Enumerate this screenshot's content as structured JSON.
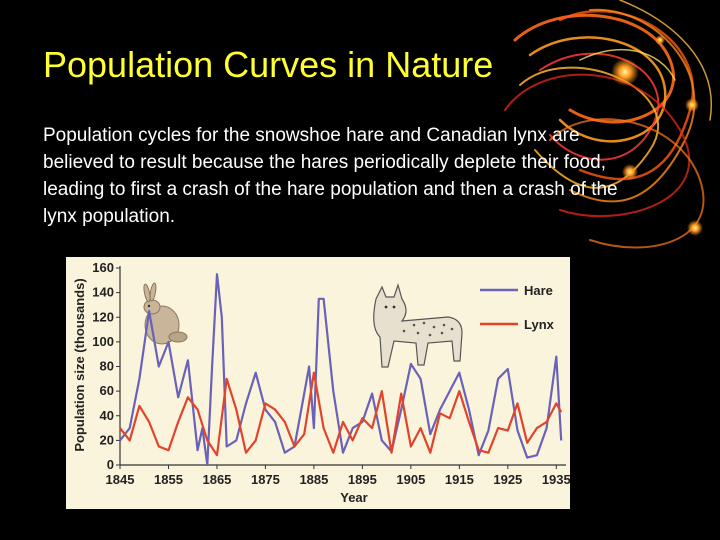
{
  "slide": {
    "title": "Population Curves in Nature",
    "body": "Population cycles for the snowshoe hare and Canadian lynx are believed to result because the hares periodically deplete their food, leading to first a crash of the hare population and then a crash of the lynx population."
  },
  "colors": {
    "background": "#000000",
    "title": "#ffff33",
    "text": "#ffffff",
    "hare": "#6a62b8",
    "lynx": "#e0442c",
    "decoration": "#ff8c1a"
  },
  "illustrations": [
    "rabbit-illustration",
    "lynx-illustration"
  ],
  "chart_data": {
    "type": "line",
    "xlabel": "Year",
    "ylabel": "Population size (thousands)",
    "xlim": [
      1845,
      1937
    ],
    "ylim": [
      0,
      160
    ],
    "x_ticks": [
      1845,
      1855,
      1865,
      1875,
      1885,
      1895,
      1905,
      1915,
      1925,
      1935
    ],
    "y_ticks": [
      0,
      20,
      40,
      60,
      80,
      100,
      120,
      140,
      160
    ],
    "legend_position": "top-right",
    "grid": false,
    "series": [
      {
        "name": "Hare",
        "color": "#6a62b8",
        "x": [
          1845,
          1847,
          1849,
          1851,
          1853,
          1855,
          1857,
          1859,
          1861,
          1862,
          1863,
          1864,
          1865,
          1866,
          1867,
          1869,
          1871,
          1873,
          1875,
          1877,
          1879,
          1881,
          1883,
          1884,
          1885,
          1886,
          1887,
          1889,
          1891,
          1893,
          1895,
          1897,
          1899,
          1901,
          1903,
          1905,
          1907,
          1909,
          1911,
          1913,
          1915,
          1917,
          1919,
          1921,
          1923,
          1925,
          1927,
          1929,
          1931,
          1933,
          1935,
          1936
        ],
        "y": [
          20,
          30,
          70,
          125,
          80,
          100,
          55,
          85,
          12,
          30,
          0,
          80,
          155,
          120,
          15,
          20,
          50,
          75,
          45,
          35,
          10,
          15,
          58,
          80,
          30,
          135,
          135,
          60,
          10,
          30,
          35,
          58,
          20,
          11,
          45,
          82,
          70,
          25,
          45,
          60,
          75,
          45,
          8,
          28,
          70,
          78,
          28,
          6,
          8,
          30,
          88,
          20
        ]
      },
      {
        "name": "Lynx",
        "color": "#e0442c",
        "x": [
          1845,
          1847,
          1849,
          1851,
          1853,
          1855,
          1857,
          1859,
          1861,
          1863,
          1865,
          1867,
          1869,
          1871,
          1873,
          1875,
          1877,
          1879,
          1881,
          1883,
          1885,
          1887,
          1889,
          1891,
          1893,
          1895,
          1897,
          1899,
          1901,
          1903,
          1905,
          1907,
          1909,
          1911,
          1913,
          1915,
          1917,
          1919,
          1921,
          1923,
          1925,
          1927,
          1929,
          1931,
          1933,
          1935,
          1936
        ],
        "y": [
          30,
          20,
          48,
          35,
          15,
          12,
          35,
          55,
          45,
          20,
          8,
          70,
          45,
          10,
          20,
          50,
          45,
          35,
          15,
          25,
          75,
          30,
          10,
          35,
          20,
          38,
          30,
          60,
          10,
          58,
          15,
          30,
          10,
          42,
          38,
          60,
          35,
          12,
          10,
          30,
          28,
          50,
          18,
          30,
          35,
          50,
          43
        ]
      }
    ]
  }
}
